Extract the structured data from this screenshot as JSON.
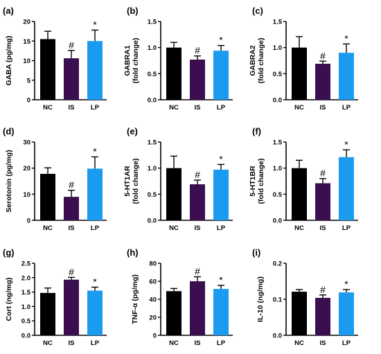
{
  "colors": {
    "NC": "#000000",
    "IS": "#3b0f4f",
    "LP": "#1b9bf0",
    "axis": "#000000"
  },
  "chart_data": [
    {
      "panel": "(a)",
      "type": "bar",
      "categories": [
        "NC",
        "IS",
        "LP"
      ],
      "ylabel": [
        "GABA (pg/mg)"
      ],
      "ylim": [
        0,
        20
      ],
      "yticks": [
        0,
        5,
        10,
        15,
        20
      ],
      "ytick_labels": [
        "0",
        "5",
        "10",
        "15",
        "20"
      ],
      "values": [
        15.5,
        10.6,
        15.0
      ],
      "errors": [
        2.0,
        2.0,
        2.8
      ],
      "markers": [
        "",
        "#",
        "*"
      ]
    },
    {
      "panel": "(b)",
      "type": "bar",
      "categories": [
        "NC",
        "IS",
        "LP"
      ],
      "ylabel": [
        "GABRA1",
        "(fold change)"
      ],
      "ylim": [
        0,
        1.5
      ],
      "yticks": [
        0,
        0.5,
        1.0,
        1.5
      ],
      "ytick_labels": [
        "0.0",
        "0.5",
        "1.0",
        "1.5"
      ],
      "values": [
        1.0,
        0.77,
        0.94
      ],
      "errors": [
        0.1,
        0.07,
        0.1
      ],
      "markers": [
        "",
        "#",
        "*"
      ]
    },
    {
      "panel": "(c)",
      "type": "bar",
      "categories": [
        "NC",
        "IS",
        "LP"
      ],
      "ylabel": [
        "GABRA2",
        "(fold change)"
      ],
      "ylim": [
        0,
        1.5
      ],
      "yticks": [
        0,
        0.5,
        1.0,
        1.5
      ],
      "ytick_labels": [
        "0.0",
        "0.5",
        "1.0",
        "1.5"
      ],
      "values": [
        1.0,
        0.69,
        0.9
      ],
      "errors": [
        0.21,
        0.05,
        0.17
      ],
      "markers": [
        "",
        "#",
        "*"
      ]
    },
    {
      "panel": "(d)",
      "type": "bar",
      "categories": [
        "NC",
        "IS",
        "LP"
      ],
      "ylabel": [
        "Serotonin (pg/mg)"
      ],
      "ylim": [
        0,
        30
      ],
      "yticks": [
        0,
        10,
        20,
        30
      ],
      "ytick_labels": [
        "0",
        "10",
        "20",
        "30"
      ],
      "values": [
        17.8,
        9.0,
        19.8
      ],
      "errors": [
        2.3,
        2.5,
        4.5
      ],
      "markers": [
        "",
        "#",
        "*"
      ]
    },
    {
      "panel": "(e)",
      "type": "bar",
      "categories": [
        "NC",
        "IS",
        "LP"
      ],
      "ylabel": [
        "5-HT1AR",
        "(fold change)"
      ],
      "ylim": [
        0,
        1.5
      ],
      "yticks": [
        0,
        0.5,
        1.0,
        1.5
      ],
      "ytick_labels": [
        "0.0",
        "0.5",
        "1.0",
        "1.5"
      ],
      "values": [
        1.0,
        0.69,
        0.97
      ],
      "errors": [
        0.23,
        0.08,
        0.1
      ],
      "markers": [
        "",
        "#",
        "*"
      ]
    },
    {
      "panel": "(f)",
      "type": "bar",
      "categories": [
        "NC",
        "IS",
        "LP"
      ],
      "ylabel": [
        "5-HT1BR",
        "(fold change)"
      ],
      "ylim": [
        0,
        1.5
      ],
      "yticks": [
        0,
        0.5,
        1.0,
        1.5
      ],
      "ytick_labels": [
        "0.0",
        "0.5",
        "1.0",
        "1.5"
      ],
      "values": [
        1.0,
        0.71,
        1.21
      ],
      "errors": [
        0.15,
        0.09,
        0.14
      ],
      "markers": [
        "",
        "#",
        "*"
      ]
    },
    {
      "panel": "(g)",
      "type": "bar",
      "categories": [
        "NC",
        "IS",
        "LP"
      ],
      "ylabel": [
        "Cort (ng/mg)"
      ],
      "ylim": [
        0,
        2.5
      ],
      "yticks": [
        0,
        0.5,
        1.0,
        1.5,
        2.0,
        2.5
      ],
      "ytick_labels": [
        "0.0",
        "0.5",
        "1.0",
        "1.5",
        "2.0",
        "2.5"
      ],
      "values": [
        1.47,
        1.93,
        1.55
      ],
      "errors": [
        0.17,
        0.08,
        0.12
      ],
      "markers": [
        "",
        "#",
        "*"
      ]
    },
    {
      "panel": "(h)",
      "type": "bar",
      "categories": [
        "NC",
        "IS",
        "LP"
      ],
      "ylabel": [
        "TNF-α (pg/mg)"
      ],
      "ylim": [
        0,
        80
      ],
      "yticks": [
        0,
        20,
        40,
        60,
        80
      ],
      "ytick_labels": [
        "0",
        "20",
        "40",
        "60",
        "80"
      ],
      "values": [
        49,
        60,
        51.5
      ],
      "errors": [
        3,
        5,
        4
      ],
      "markers": [
        "",
        "#",
        "*"
      ]
    },
    {
      "panel": "(i)",
      "type": "bar",
      "categories": [
        "NC",
        "IS",
        "LP"
      ],
      "ylabel": [
        "IL-10 (ng/mg)"
      ],
      "ylim": [
        0,
        0.2
      ],
      "yticks": [
        0,
        0.1,
        0.2
      ],
      "ytick_labels": [
        "0.0",
        "0.1",
        "0.2"
      ],
      "values": [
        0.121,
        0.104,
        0.119
      ],
      "errors": [
        0.006,
        0.008,
        0.008
      ],
      "markers": [
        "",
        "#",
        "*"
      ]
    }
  ]
}
